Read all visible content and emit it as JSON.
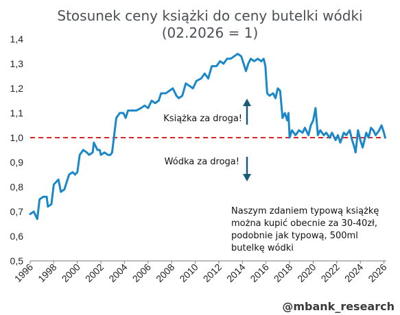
{
  "chart_data": {
    "type": "line",
    "title": "Stosunek ceny książki do ceny butelki wódki",
    "subtitle": "(02.2026 = 1)",
    "xlabel": "",
    "ylabel": "",
    "xlim": [
      1996,
      2026.2
    ],
    "ylim": [
      0.5,
      1.4
    ],
    "y_ticks": [
      "0,5",
      "0,6",
      "0,7",
      "0,8",
      "0,9",
      "1,0",
      "1,1",
      "1,2",
      "1,3",
      "1,4"
    ],
    "x_ticks": [
      "1996",
      "1998",
      "2000",
      "2002",
      "2004",
      "2006",
      "2008",
      "2010",
      "2012",
      "2014",
      "2016",
      "2018",
      "2020",
      "2022",
      "2024",
      "2026"
    ],
    "grid": false,
    "reference_line": {
      "y": 1.0,
      "style": "dashed",
      "color": "#e0201f"
    },
    "series": [
      {
        "color": "#1a88c8",
        "points": [
          [
            1996.0,
            0.69
          ],
          [
            1996.3,
            0.7
          ],
          [
            1996.6,
            0.67
          ],
          [
            1996.8,
            0.75
          ],
          [
            1997.1,
            0.76
          ],
          [
            1997.4,
            0.76
          ],
          [
            1997.5,
            0.72
          ],
          [
            1997.8,
            0.73
          ],
          [
            1998.0,
            0.81
          ],
          [
            1998.4,
            0.83
          ],
          [
            1998.6,
            0.78
          ],
          [
            1998.9,
            0.79
          ],
          [
            1999.3,
            0.85
          ],
          [
            1999.6,
            0.86
          ],
          [
            1999.8,
            0.85
          ],
          [
            2000.0,
            0.86
          ],
          [
            2000.2,
            0.93
          ],
          [
            2000.5,
            0.95
          ],
          [
            2000.8,
            0.94
          ],
          [
            2001.0,
            0.93
          ],
          [
            2001.3,
            0.94
          ],
          [
            2001.4,
            0.98
          ],
          [
            2001.7,
            0.95
          ],
          [
            2001.9,
            0.95
          ],
          [
            2002.0,
            0.93
          ],
          [
            2002.3,
            0.94
          ],
          [
            2002.6,
            0.93
          ],
          [
            2002.8,
            0.93
          ],
          [
            2002.95,
            0.94
          ],
          [
            2003.1,
            1.0
          ],
          [
            2003.3,
            1.08
          ],
          [
            2003.6,
            1.1
          ],
          [
            2003.9,
            1.1
          ],
          [
            2004.1,
            1.08
          ],
          [
            2004.3,
            1.11
          ],
          [
            2004.7,
            1.11
          ],
          [
            2005.0,
            1.11
          ],
          [
            2005.4,
            1.12
          ],
          [
            2005.7,
            1.13
          ],
          [
            2006.0,
            1.12
          ],
          [
            2006.3,
            1.15
          ],
          [
            2006.6,
            1.14
          ],
          [
            2006.9,
            1.15
          ],
          [
            2007.1,
            1.18
          ],
          [
            2007.5,
            1.18
          ],
          [
            2007.8,
            1.19
          ],
          [
            2008.1,
            1.2
          ],
          [
            2008.4,
            1.17
          ],
          [
            2008.6,
            1.16
          ],
          [
            2008.9,
            1.17
          ],
          [
            2009.2,
            1.22
          ],
          [
            2009.5,
            1.21
          ],
          [
            2009.8,
            1.2
          ],
          [
            2010.1,
            1.23
          ],
          [
            2010.5,
            1.24
          ],
          [
            2010.8,
            1.26
          ],
          [
            2011.1,
            1.24
          ],
          [
            2011.4,
            1.29
          ],
          [
            2011.8,
            1.29
          ],
          [
            2012.1,
            1.31
          ],
          [
            2012.4,
            1.3
          ],
          [
            2012.7,
            1.32
          ],
          [
            2013.0,
            1.32
          ],
          [
            2013.3,
            1.33
          ],
          [
            2013.6,
            1.34
          ],
          [
            2013.9,
            1.33
          ],
          [
            2014.1,
            1.3
          ],
          [
            2014.3,
            1.27
          ],
          [
            2014.5,
            1.3
          ],
          [
            2014.7,
            1.32
          ],
          [
            2015.0,
            1.31
          ],
          [
            2015.3,
            1.32
          ],
          [
            2015.6,
            1.31
          ],
          [
            2015.8,
            1.32
          ],
          [
            2015.95,
            1.29
          ],
          [
            2016.1,
            1.18
          ],
          [
            2016.3,
            1.17
          ],
          [
            2016.6,
            1.18
          ],
          [
            2016.8,
            1.16
          ],
          [
            2017.0,
            1.2
          ],
          [
            2017.2,
            1.19
          ],
          [
            2017.4,
            1.08
          ],
          [
            2017.6,
            1.1
          ],
          [
            2017.8,
            1.07
          ],
          [
            2017.9,
            1.1
          ],
          [
            2018.0,
            1.0
          ],
          [
            2018.2,
            1.03
          ],
          [
            2018.5,
            1.01
          ],
          [
            2018.8,
            1.03
          ],
          [
            2019.1,
            1.02
          ],
          [
            2019.3,
            1.04
          ],
          [
            2019.6,
            1.01
          ],
          [
            2019.8,
            1.05
          ],
          [
            2020.0,
            1.07
          ],
          [
            2020.2,
            1.12
          ],
          [
            2020.4,
            1.01
          ],
          [
            2020.6,
            1.03
          ],
          [
            2020.9,
            1.01
          ],
          [
            2021.1,
            1.02
          ],
          [
            2021.4,
            1.0
          ],
          [
            2021.6,
            1.02
          ],
          [
            2021.9,
            0.99
          ],
          [
            2022.1,
            1.01
          ],
          [
            2022.3,
            0.98
          ],
          [
            2022.6,
            1.02
          ],
          [
            2022.8,
            1.01
          ],
          [
            2023.1,
            1.03
          ],
          [
            2023.3,
            0.99
          ],
          [
            2023.5,
            0.96
          ],
          [
            2023.6,
            0.94
          ],
          [
            2023.8,
            1.03
          ],
          [
            2024.0,
            0.99
          ],
          [
            2024.2,
            0.96
          ],
          [
            2024.5,
            1.02
          ],
          [
            2024.7,
            1.0
          ],
          [
            2024.9,
            1.04
          ],
          [
            2025.1,
            1.03
          ],
          [
            2025.3,
            1.01
          ],
          [
            2025.6,
            1.03
          ],
          [
            2025.8,
            1.05
          ],
          [
            2026.0,
            1.02
          ],
          [
            2026.1,
            1.0
          ]
        ]
      }
    ],
    "annotations": {
      "up_label": "Książka za droga!",
      "down_label": "Wódka za droga!",
      "note_lines": [
        "Naszym zdaniem typową książkę",
        "można kupić obecnie za 30-40zł,",
        "podobnie jak typową, 500ml",
        "butelkę wódki"
      ]
    }
  },
  "footer": {
    "handle": "@mbank_research"
  },
  "colors": {
    "line": "#1a88c8",
    "arrow": "#1a5a7a",
    "title": "#4a4f55"
  }
}
